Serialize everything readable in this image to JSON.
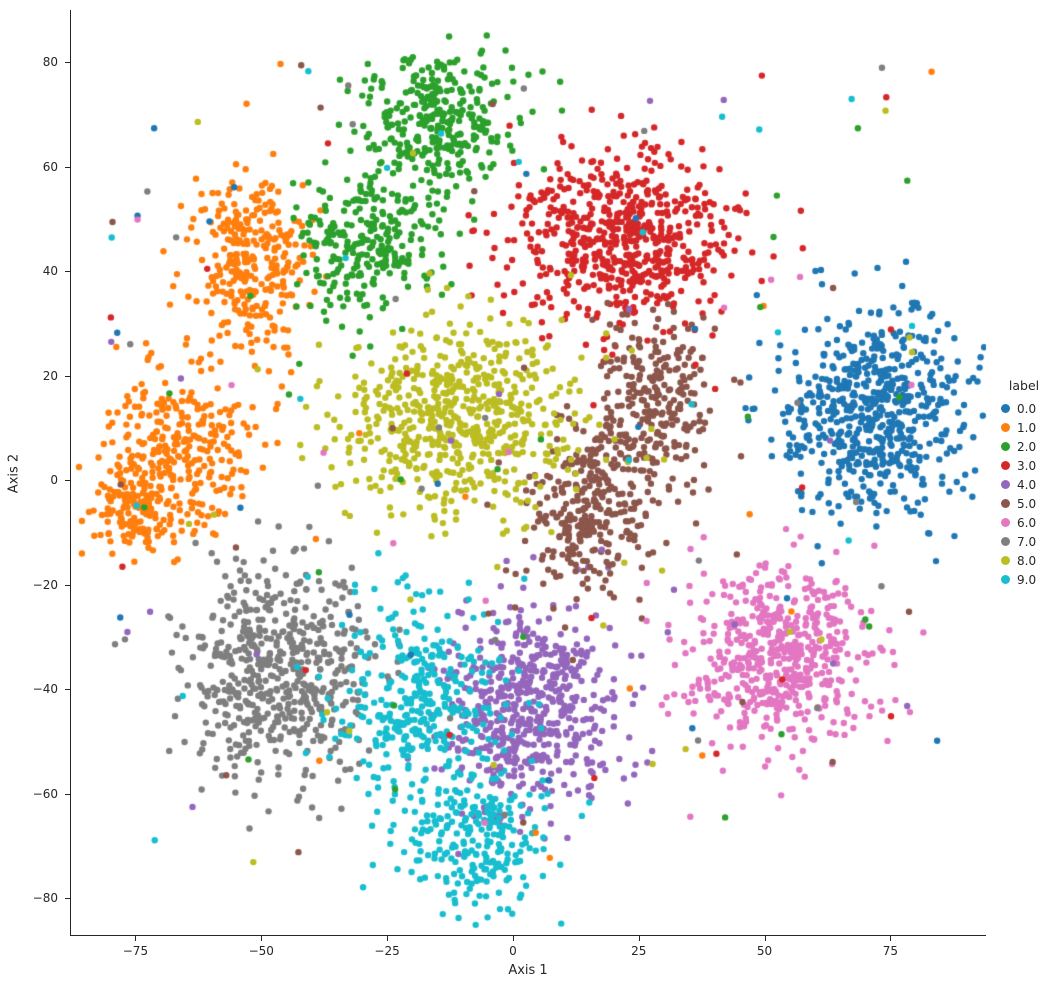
{
  "figure": {
    "background": "#ffffff"
  },
  "chart_data": {
    "type": "scatter",
    "title": "",
    "xlabel": "Axis 1",
    "ylabel": "Axis 2",
    "xlim": [
      -88,
      94
    ],
    "ylim": [
      -87,
      90
    ],
    "grid": false,
    "legend_position": "right-outside",
    "x_ticks": [
      -75,
      -50,
      -25,
      0,
      25,
      50,
      75
    ],
    "x_tick_labels": [
      "−75",
      "−50",
      "−25",
      "0",
      "25",
      "50",
      "75"
    ],
    "y_ticks": [
      -80,
      -60,
      -40,
      -20,
      0,
      20,
      40,
      60,
      80
    ],
    "y_tick_labels": [
      "−80",
      "−60",
      "−40",
      "−20",
      "0",
      "20",
      "40",
      "60",
      "80"
    ],
    "marker_radius_px": 3.2,
    "noise_area": {
      "x": [
        -80,
        85
      ],
      "y": [
        -74,
        80
      ]
    },
    "series": [
      {
        "name": "0.0",
        "color": "#1f77b4",
        "clusters": [
          {
            "cx": 72,
            "cy": 13,
            "sx": 9.0,
            "sy": 9.5,
            "n": 620
          }
        ],
        "noise_n": 18
      },
      {
        "name": "1.0",
        "color": "#ff7f0e",
        "clusters": [
          {
            "cx": -52,
            "cy": 42,
            "sx": 5.5,
            "sy": 9.0,
            "n": 300
          },
          {
            "cx": -66,
            "cy": 6,
            "sx": 6.5,
            "sy": 9.0,
            "n": 280
          },
          {
            "cx": -75,
            "cy": -5,
            "sx": 4.0,
            "sy": 5.0,
            "n": 140
          }
        ],
        "noise_n": 14
      },
      {
        "name": "2.0",
        "color": "#2ca02c",
        "clusters": [
          {
            "cx": -15,
            "cy": 68,
            "sx": 8.0,
            "sy": 7.0,
            "n": 330
          },
          {
            "cx": -29,
            "cy": 45,
            "sx": 7.0,
            "sy": 6.5,
            "n": 260
          }
        ],
        "noise_n": 24
      },
      {
        "name": "3.0",
        "color": "#d62728",
        "clusters": [
          {
            "cx": 22,
            "cy": 46,
            "sx": 11.0,
            "sy": 8.0,
            "n": 620
          }
        ],
        "noise_n": 24
      },
      {
        "name": "4.0",
        "color": "#9467bd",
        "clusters": [
          {
            "cx": 3,
            "cy": -44,
            "sx": 9.0,
            "sy": 10.0,
            "n": 560
          }
        ],
        "noise_n": 20
      },
      {
        "name": "5.0",
        "color": "#8c564b",
        "clusters": [
          {
            "cx": 15,
            "cy": -6,
            "sx": 6.5,
            "sy": 8.0,
            "n": 300
          },
          {
            "cx": 28,
            "cy": 15,
            "sx": 6.0,
            "sy": 8.0,
            "n": 260
          }
        ],
        "noise_n": 20
      },
      {
        "name": "6.0",
        "color": "#e377c2",
        "clusters": [
          {
            "cx": 53,
            "cy": -34,
            "sx": 9.0,
            "sy": 9.0,
            "n": 560
          }
        ],
        "noise_n": 12
      },
      {
        "name": "7.0",
        "color": "#7f7f7f",
        "clusters": [
          {
            "cx": -47,
            "cy": -37,
            "sx": 9.0,
            "sy": 10.0,
            "n": 560
          }
        ],
        "noise_n": 26
      },
      {
        "name": "8.0",
        "color": "#bcbd22",
        "clusters": [
          {
            "cx": -11,
            "cy": 11,
            "sx": 11.5,
            "sy": 9.0,
            "n": 620
          }
        ],
        "noise_n": 26
      },
      {
        "name": "9.0",
        "color": "#17becf",
        "clusters": [
          {
            "cx": -18,
            "cy": -42,
            "sx": 8.0,
            "sy": 10.0,
            "n": 340
          },
          {
            "cx": -7,
            "cy": -68,
            "sx": 8.0,
            "sy": 7.0,
            "n": 250
          }
        ],
        "noise_n": 24
      }
    ]
  },
  "legend": {
    "title": "label",
    "entries": [
      {
        "label": "0.0",
        "color": "#1f77b4"
      },
      {
        "label": "1.0",
        "color": "#ff7f0e"
      },
      {
        "label": "2.0",
        "color": "#2ca02c"
      },
      {
        "label": "3.0",
        "color": "#d62728"
      },
      {
        "label": "4.0",
        "color": "#9467bd"
      },
      {
        "label": "5.0",
        "color": "#8c564b"
      },
      {
        "label": "6.0",
        "color": "#e377c2"
      },
      {
        "label": "7.0",
        "color": "#7f7f7f"
      },
      {
        "label": "8.0",
        "color": "#bcbd22"
      },
      {
        "label": "9.0",
        "color": "#17becf"
      }
    ]
  }
}
